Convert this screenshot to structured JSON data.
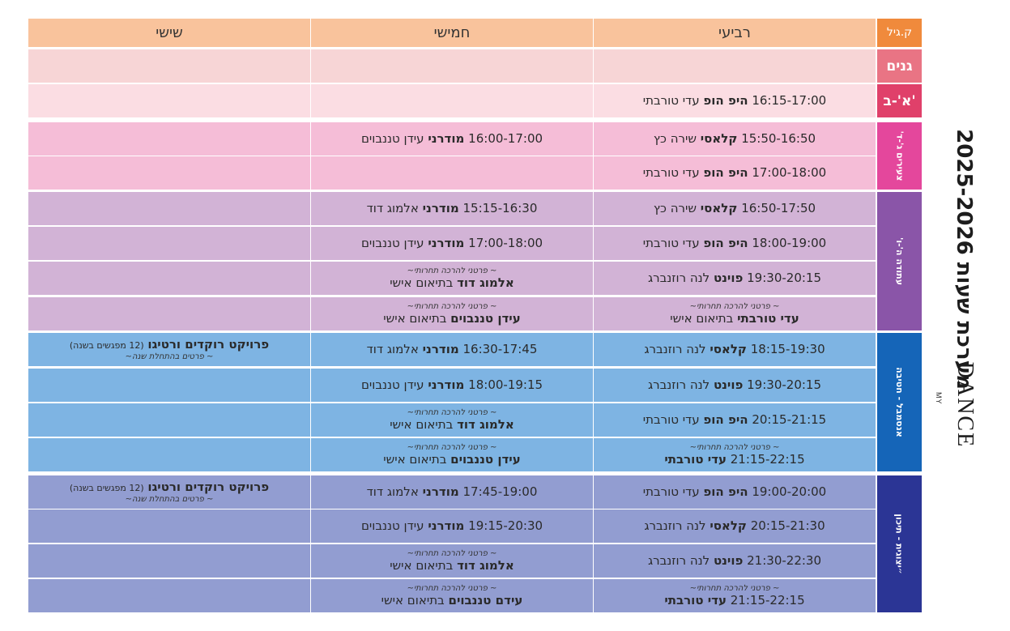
{
  "header": {
    "age": "ק.גיל",
    "wed": "רביעי",
    "thu": "חמישי",
    "fri": "שישי"
  },
  "groups": [
    {
      "label": "גנים",
      "color": "#e97484",
      "rows": [
        0
      ]
    },
    {
      "label": "א'-ב'",
      "color": "#e0406a",
      "rows": [
        1
      ]
    },
    {
      "label": "צעירים ג'-ד'",
      "color": "#e4479c",
      "rows": [
        2,
        3
      ]
    },
    {
      "label": "עתודה ה'-ו'",
      "color": "#8a55a8",
      "rows": [
        4,
        5,
        6,
        7
      ]
    },
    {
      "label": "אנסמבל - חטיבה",
      "color": "#1565b8",
      "rows": [
        8,
        9,
        10,
        11
      ]
    },
    {
      "label": "״יצוגית - תיכון",
      "color": "#2b3595",
      "rows": [
        12,
        13,
        14,
        15
      ]
    }
  ],
  "rows": [
    {
      "color": "#f7d5d6",
      "wed": [],
      "thu": [],
      "fri": []
    },
    {
      "color": "#fbdde3",
      "wed": [
        {
          "t": "16:15-17:00",
          "b": "היפ הופ",
          "n": "עדי טורבתי"
        }
      ],
      "thu": [],
      "fri": []
    },
    {
      "color": "#f5bdd7",
      "wed": [
        {
          "t": "15:50-16:50",
          "b": "קלאסי",
          "n": "שירה כץ"
        }
      ],
      "thu": [
        {
          "t": "16:00-17:00",
          "b": "מודרני",
          "n": "עידן טננבוים"
        }
      ],
      "fri": []
    },
    {
      "color": "#f5bdd7",
      "wed": [
        {
          "t": "17:00-18:00",
          "b": "היפ הופ",
          "n": "עדי טורבתי"
        }
      ],
      "thu": [],
      "fri": []
    },
    {
      "color": "#d2b3d6",
      "wed": [
        {
          "t": "16:50-17:50",
          "b": "קלאסי",
          "n": "שירה כץ"
        }
      ],
      "thu": [
        {
          "t": "15:15-16:30",
          "b": "מודרני",
          "n": "אלמוג דוד"
        }
      ],
      "fri": []
    },
    {
      "color": "#d2b3d6",
      "wed": [
        {
          "t": "18:00-19:00",
          "b": "היפ הופ",
          "n": "עדי טורבתי"
        }
      ],
      "thu": [
        {
          "t": "17:00-18:00",
          "b": "מודרני",
          "n": "עידן טננבוים"
        }
      ],
      "fri": []
    },
    {
      "color": "#d2b3d6",
      "wed": [
        {
          "t": "19:30-20:15",
          "b": "פוינט",
          "n": "לנה רוזנברג"
        }
      ],
      "thu": [
        {
          "note": "~ פרטני להרכה תחרותי~"
        },
        {
          "b": "אלמוג דוד",
          "n": "בתיאום אישי"
        }
      ],
      "fri": []
    },
    {
      "color": "#d2b3d6",
      "wed": [
        {
          "note": "~ פרטני להרכה תחרותי~"
        },
        {
          "b": "עדי טורבתי",
          "n": "בתיאום אישי"
        }
      ],
      "thu": [
        {
          "note": "~ פרטני להרכה תחרותי~"
        },
        {
          "b": "עידן טננבוים",
          "n": "בתיאום אישי"
        }
      ],
      "fri": []
    },
    {
      "color": "#7eb4e3",
      "wed": [
        {
          "t": "18:15-19:30",
          "b": "קלאסי",
          "n": "לנה רוזנברג"
        }
      ],
      "thu": [
        {
          "t": "16:30-17:45",
          "b": "מודרני",
          "n": "אלמוג דוד"
        }
      ],
      "fri": [
        {
          "b": "פרויקט רוקדים ורטיגו",
          "s": "(12 מפגשים בשנה)"
        },
        {
          "note": "~ פרטים בהתחלת שנה~"
        }
      ]
    },
    {
      "color": "#7eb4e3",
      "wed": [
        {
          "t": "19:30-20:15",
          "b": "פוינט",
          "n": "לנה רוזנברג"
        }
      ],
      "thu": [
        {
          "t": "18:00-19:15",
          "b": "מודרני",
          "n": "עידן טננבוים"
        }
      ],
      "fri": []
    },
    {
      "color": "#7eb4e3",
      "wed": [
        {
          "t": "20:15-21:15",
          "b": "היפ הופ",
          "n": "עדי טורבתי"
        }
      ],
      "thu": [
        {
          "note": "~ פרטני להרכה תחרותי~"
        },
        {
          "b": "אלמוג דוד",
          "n": "בתיאום אישי"
        }
      ],
      "fri": []
    },
    {
      "color": "#7eb4e3",
      "wed": [
        {
          "note": "~ פרטני להרכה תחרותי~"
        },
        {
          "t": "21:15-22:15",
          "b": "עדי טורבתי"
        }
      ],
      "thu": [
        {
          "note": "~ פרטני להרכה תחרותי~"
        },
        {
          "b": "עידן טננבוים",
          "n": "בתיאום אישי"
        }
      ],
      "fri": []
    },
    {
      "color": "#929dd1",
      "wed": [
        {
          "t": "19:00-20:00",
          "b": "היפ הופ",
          "n": "עדי טורבתי"
        }
      ],
      "thu": [
        {
          "t": "17:45-19:00",
          "b": "מודרני",
          "n": "אלמוג דוד"
        }
      ],
      "fri": [
        {
          "b": "פרויקט רוקדים ורטיגו",
          "s": "(12 מפגשים בשנה)"
        },
        {
          "note": "~ פרטים בהתחלת שנה~"
        }
      ]
    },
    {
      "color": "#929dd1",
      "wed": [
        {
          "t": "20:15-21:30",
          "b": "קלאסי",
          "n": "לנה רוזנברג"
        }
      ],
      "thu": [
        {
          "t": "19:15-20:30",
          "b": "מודרני",
          "n": "עידן טננבוים"
        }
      ],
      "fri": []
    },
    {
      "color": "#929dd1",
      "wed": [
        {
          "t": "21:30-22:30",
          "b": "פוינט",
          "n": "לנה רוזנברג"
        }
      ],
      "thu": [
        {
          "note": "~ פרטני להרכה תחרותי~"
        },
        {
          "b": "אלמוג דוד",
          "n": "בתיאום אישי"
        }
      ],
      "fri": []
    },
    {
      "color": "#929dd1",
      "wed": [
        {
          "note": "~ פרטני להרכה תחרותי~"
        },
        {
          "t": "21:15-22:15",
          "b": "עדי טורבתי"
        }
      ],
      "thu": [
        {
          "note": "~ פרטני להרכה תחרותי~"
        },
        {
          "b": "עידם טננבוים",
          "n": "בתיאום אישי"
        }
      ],
      "fri": []
    }
  ],
  "side": {
    "title": "מערכת שעות 2025-2026",
    "logo_my": "MY",
    "logo_dance": "DANCE"
  }
}
